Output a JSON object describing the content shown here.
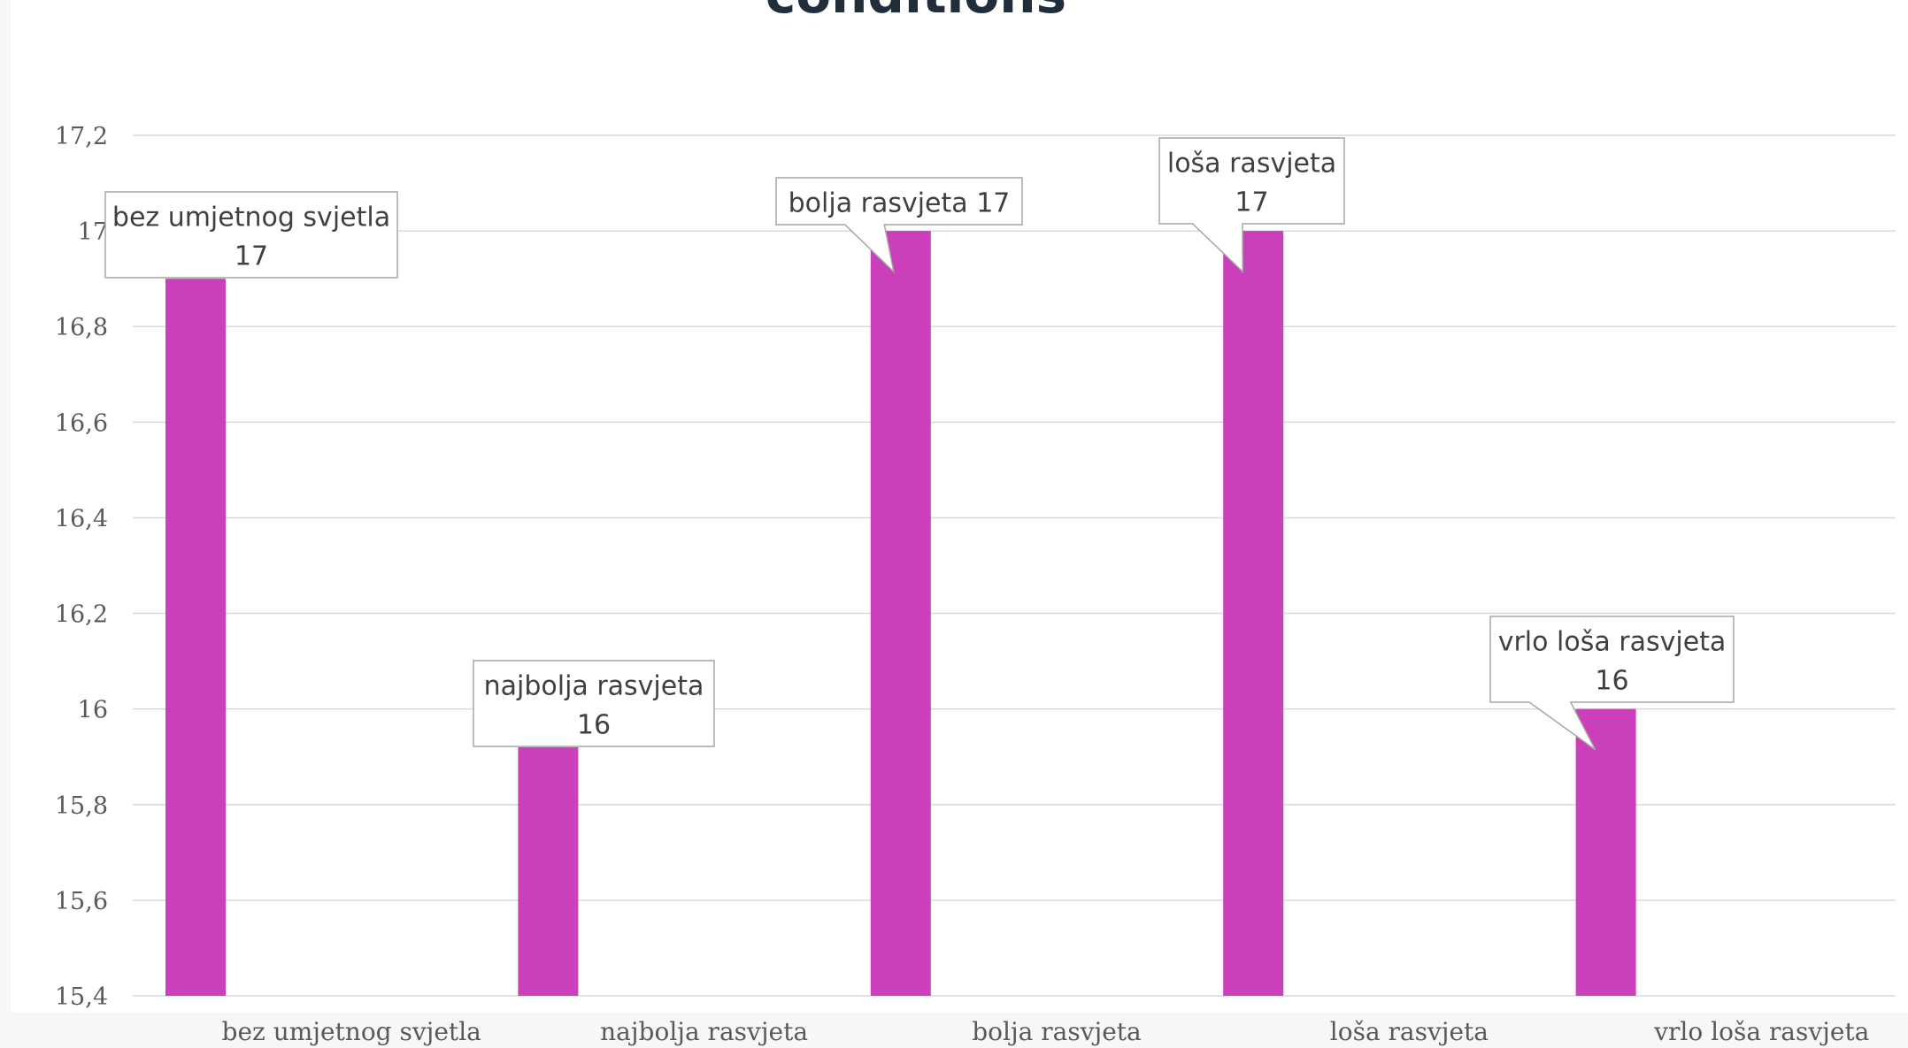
{
  "chart_data": {
    "type": "bar",
    "title": "conditions",
    "categories": [
      "bez umjetnog svjetla",
      "najbolja rasvjeta",
      "bolja rasvjeta",
      "loša rasvjeta",
      "vrlo loša rasvjeta"
    ],
    "series": [
      {
        "values": [
          16.9,
          15.92,
          17,
          17,
          16
        ]
      }
    ],
    "data_labels": [
      [
        "bez umjetnog svjetla",
        "17"
      ],
      [
        "najbolja rasvjeta",
        "16"
      ],
      [
        "bolja rasvjeta  17"
      ],
      [
        "loša rasvjeta",
        "17"
      ],
      [
        "vrlo loša rasvjeta",
        "16"
      ]
    ],
    "y_ticks": [
      "15,4",
      "15,6",
      "15,8",
      "16",
      "16,2",
      "16,4",
      "16,6",
      "16,8",
      "17",
      "17,2"
    ],
    "ylim": [
      15.4,
      17.2
    ],
    "grid": true,
    "legend": "none",
    "colors": {
      "bar": "#cc3fbb",
      "grid": "#d9d9d9",
      "tick_text": "#595959",
      "label_text": "#404040",
      "title_text": "#1f2d3d",
      "callout_border": "#a6a6a6",
      "plot_background": "#ffffff"
    }
  }
}
